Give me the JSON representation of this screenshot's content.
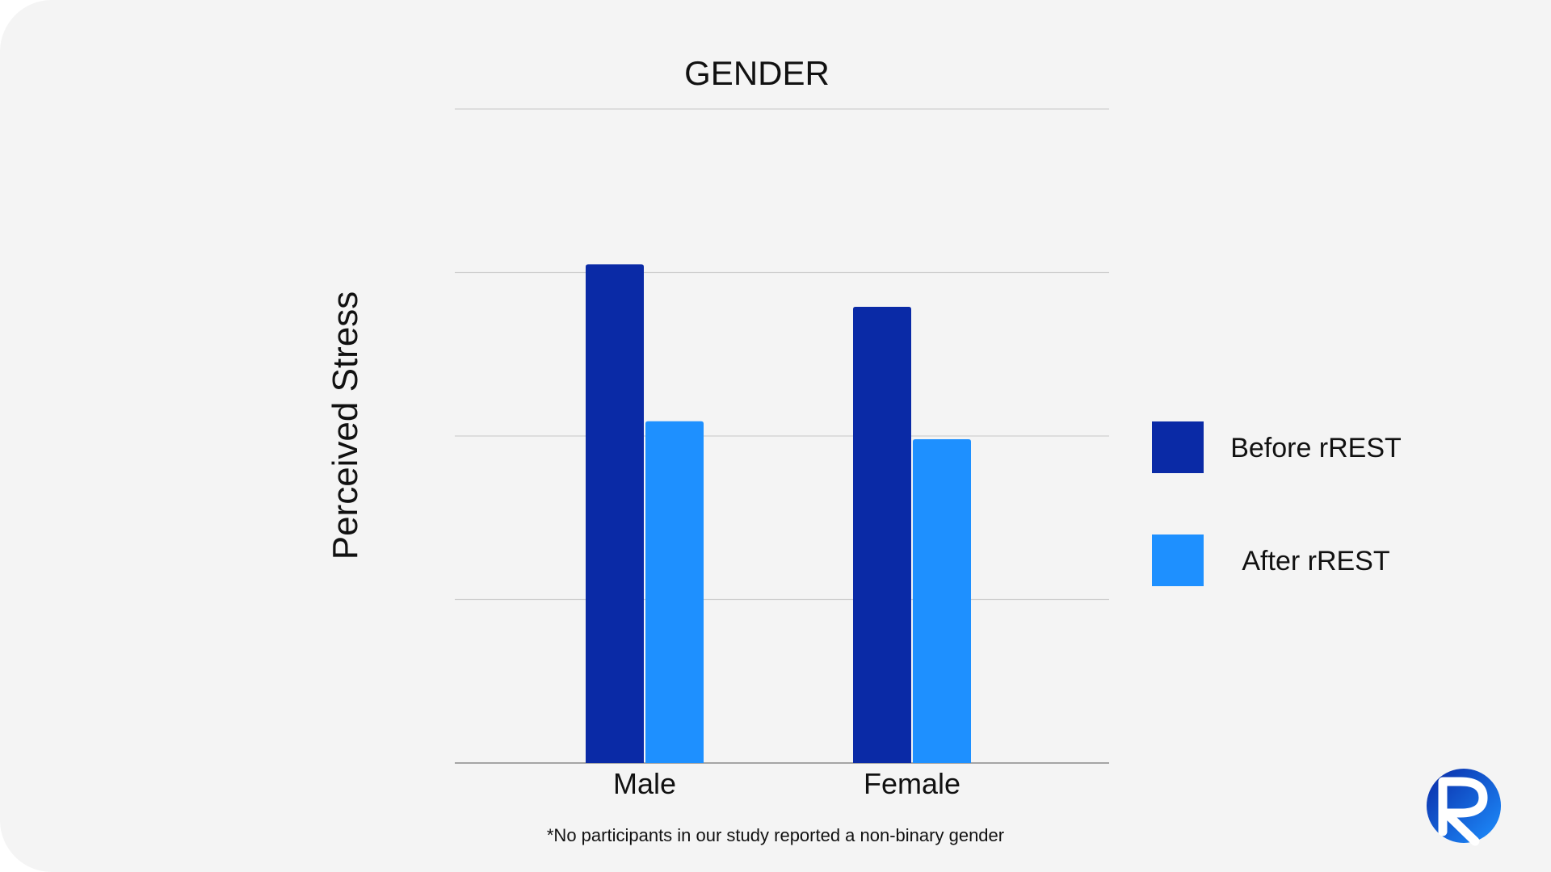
{
  "chart_data": {
    "type": "bar",
    "title": "GENDER",
    "xlabel": "",
    "ylabel": "Perceived Stress",
    "categories": [
      "Male",
      "Female"
    ],
    "series": [
      {
        "name": "Before rREST",
        "color": "#0a2aa6",
        "values": [
          3.05,
          2.79
        ]
      },
      {
        "name": "After rREST",
        "color": "#1e90ff",
        "values": [
          2.09,
          1.98
        ]
      }
    ],
    "ylim": [
      0,
      4
    ],
    "y_gridlines": [
      1,
      2,
      3,
      4
    ],
    "y_tick_labels_shown": false,
    "grid": true,
    "legend_position": "right"
  },
  "footnote": "*No participants in our study reported a non-binary gender",
  "logo": {
    "icon": "r-logo-icon",
    "colors": [
      "#0a2aa6",
      "#1e90ff"
    ]
  }
}
